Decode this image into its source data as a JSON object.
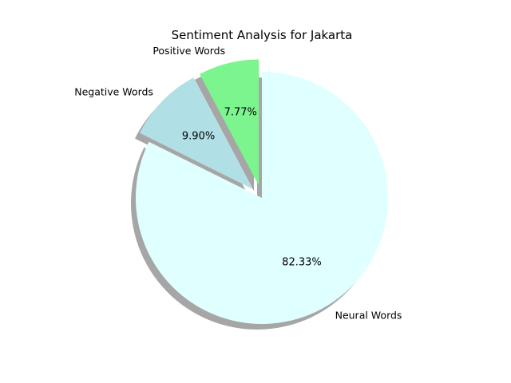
{
  "chart_data": {
    "type": "pie",
    "title": "Sentiment Analysis for Jakarta",
    "categories": [
      "Positive Words",
      "Negative Words",
      "Neural Words"
    ],
    "values": [
      7.77,
      9.9,
      82.33
    ],
    "value_labels": [
      "7.77%",
      "9.90%",
      "82.33%"
    ],
    "colors": [
      "#7df58f",
      "#b0e0e6",
      "#e0ffff"
    ],
    "exploded": [
      true,
      true,
      false
    ],
    "start_angle_deg": 90,
    "direction": "counterclockwise",
    "shadow": true,
    "legend": "none"
  }
}
